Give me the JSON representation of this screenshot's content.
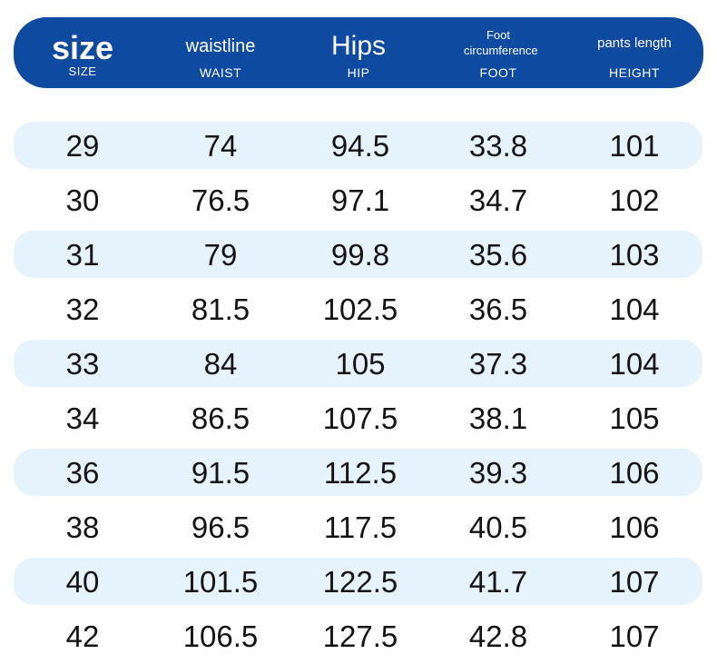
{
  "header": {
    "columns": [
      {
        "main": "size",
        "sub": "SIZE"
      },
      {
        "main": "waistline",
        "sub": "WAIST"
      },
      {
        "main": "Hips",
        "sub": "HIP"
      },
      {
        "main": "Foot circumference",
        "sub": "FOOT"
      },
      {
        "main": "pants length",
        "sub": "HEIGHT"
      }
    ]
  },
  "rows": [
    [
      "29",
      "74",
      "94.5",
      "33.8",
      "101"
    ],
    [
      "30",
      "76.5",
      "97.1",
      "34.7",
      "102"
    ],
    [
      "31",
      "79",
      "99.8",
      "35.6",
      "103"
    ],
    [
      "32",
      "81.5",
      "102.5",
      "36.5",
      "104"
    ],
    [
      "33",
      "84",
      "105",
      "37.3",
      "104"
    ],
    [
      "34",
      "86.5",
      "107.5",
      "38.1",
      "105"
    ],
    [
      "36",
      "91.5",
      "112.5",
      "39.3",
      "106"
    ],
    [
      "38",
      "96.5",
      "117.5",
      "40.5",
      "106"
    ],
    [
      "40",
      "101.5",
      "122.5",
      "41.7",
      "107"
    ],
    [
      "42",
      "106.5",
      "127.5",
      "42.8",
      "107"
    ]
  ],
  "colors": {
    "header_bg": "#0d4aa0",
    "stripe_bg": "#e6f3fd",
    "text": "#141414"
  }
}
